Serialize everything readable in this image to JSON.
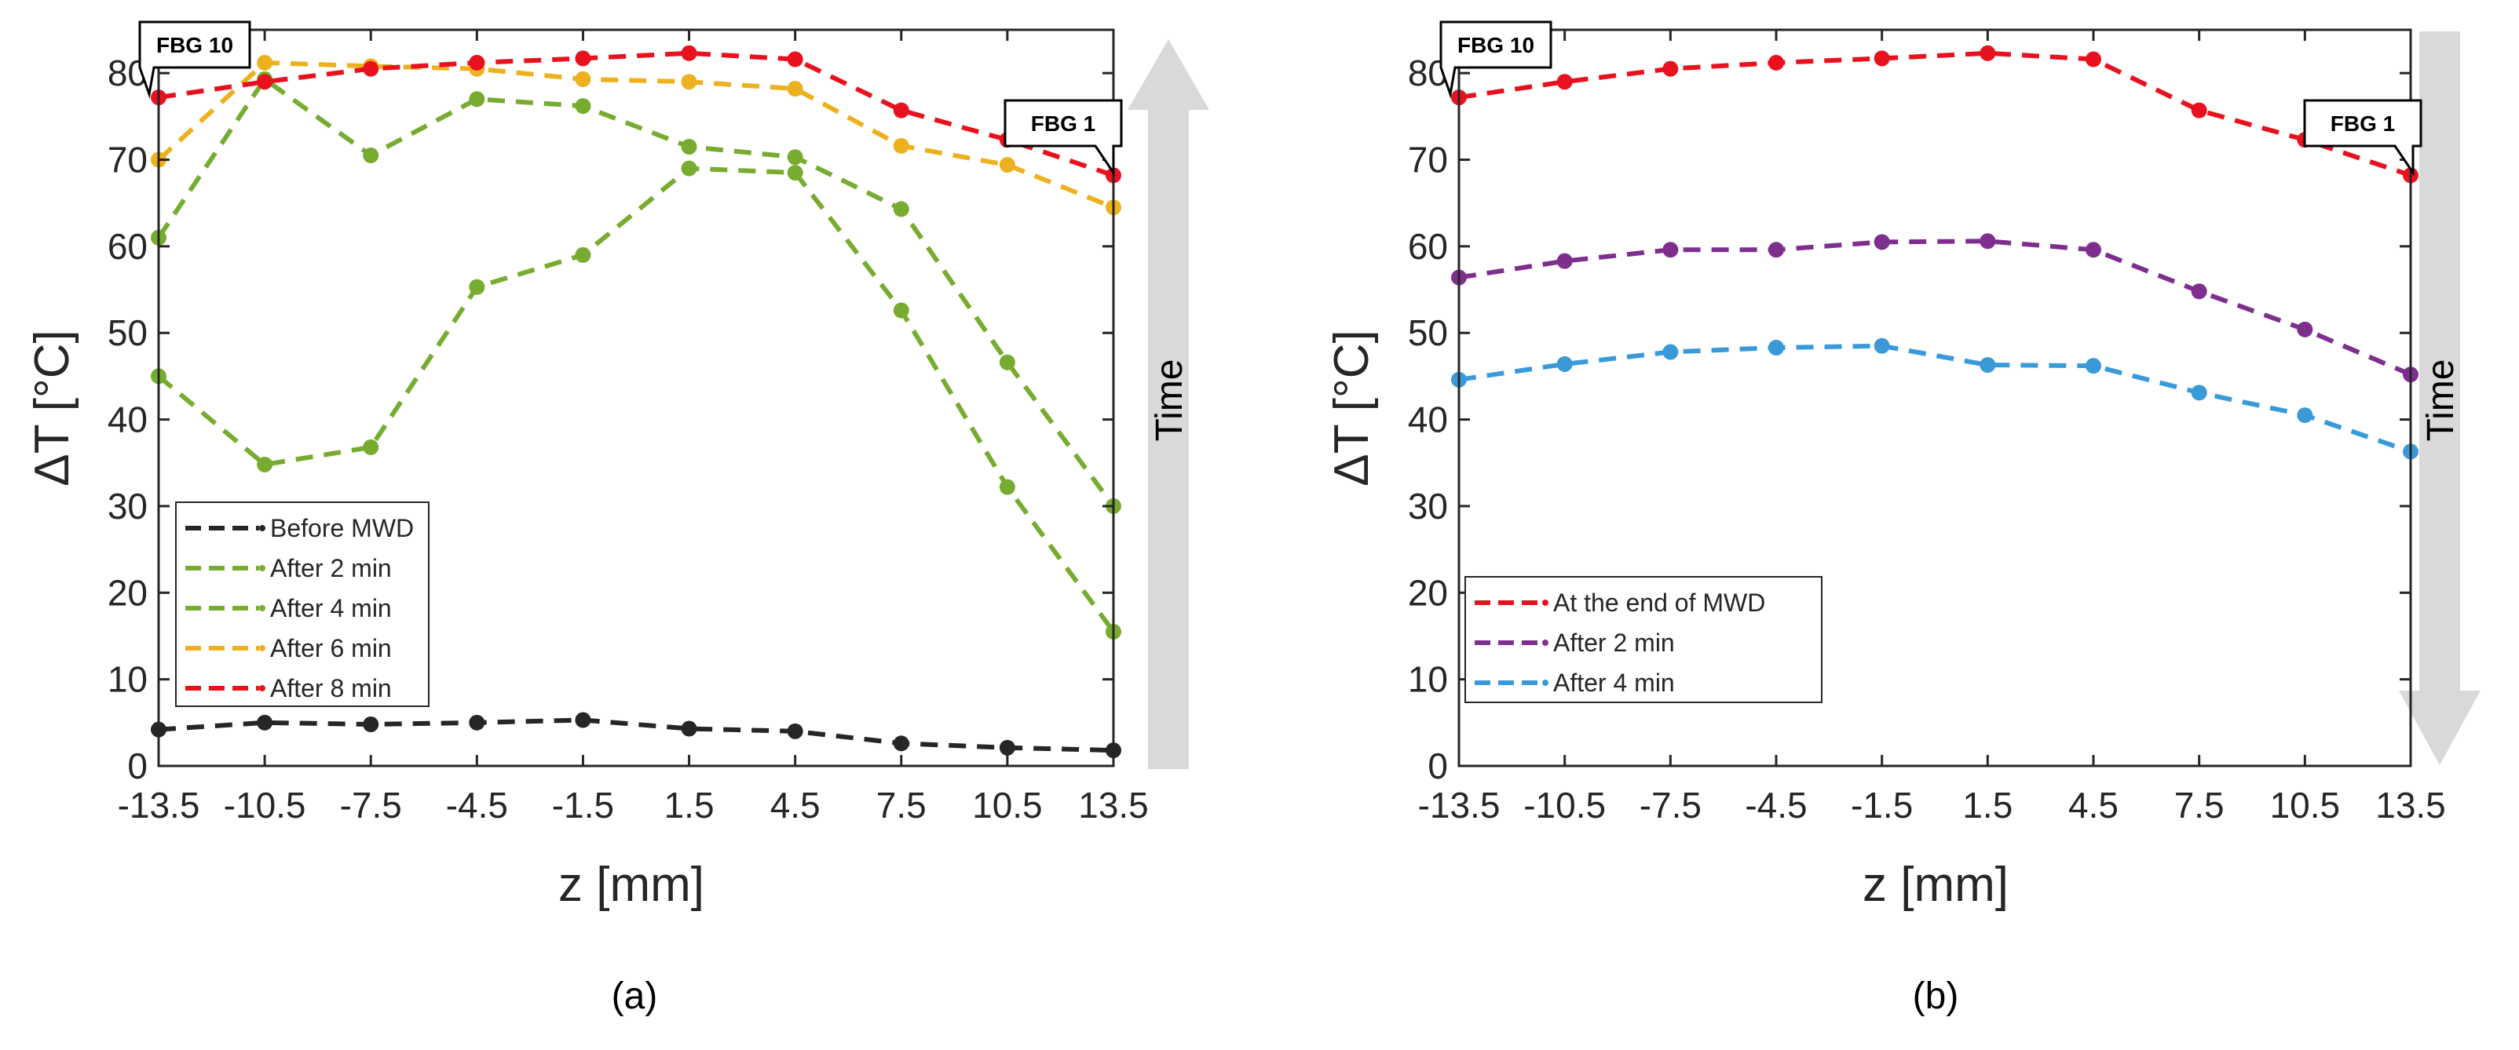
{
  "chart_data": [
    {
      "type": "line",
      "panel_label": "(a)",
      "xlabel": "z  [mm]",
      "ylabel": "ΔT [°C]",
      "categories": [
        "-13.5",
        "-10.5",
        "-7.5",
        "-4.5",
        "-1.5",
        "1.5",
        "4.5",
        "7.5",
        "10.5",
        "13.5"
      ],
      "x": [
        -13.5,
        -10.5,
        -7.5,
        -4.5,
        -1.5,
        1.5,
        4.5,
        7.5,
        10.5,
        13.5
      ],
      "xlim": [
        -13.5,
        13.5
      ],
      "ylim": [
        0,
        85
      ],
      "yticks": [
        0,
        10,
        20,
        30,
        40,
        50,
        60,
        70,
        80
      ],
      "legend_location": "bottom-left",
      "series": [
        {
          "name": "Before MWD",
          "color": "#262626",
          "values": [
            4.2,
            5.0,
            4.8,
            5.0,
            5.3,
            4.3,
            4.0,
            2.6,
            2.1,
            1.8
          ]
        },
        {
          "name": "After 2 min",
          "color": "#77ac30",
          "values": [
            45.0,
            34.8,
            36.8,
            55.3,
            59.0,
            69.0,
            68.5,
            52.6,
            32.2,
            15.5
          ]
        },
        {
          "name": "After 4 min",
          "color": "#77ac30",
          "values": [
            61.0,
            79.3,
            70.5,
            77.0,
            76.2,
            71.5,
            70.3,
            64.3,
            46.6,
            30.0
          ]
        },
        {
          "name": "After 6 min",
          "color": "#edb120",
          "values": [
            70.0,
            81.2,
            80.8,
            80.5,
            79.3,
            79.0,
            78.2,
            71.6,
            69.4,
            64.5
          ]
        },
        {
          "name": "After 8 min",
          "color": "#e8121f",
          "values": [
            77.2,
            79.0,
            80.5,
            81.2,
            81.7,
            82.3,
            81.6,
            75.7,
            72.3,
            68.2
          ]
        }
      ],
      "annotations": [
        {
          "text": "FBG 10",
          "at_x": -13.5,
          "placement": "top-left"
        },
        {
          "text": "FBG 1",
          "at_x": 13.5,
          "placement": "top-right"
        }
      ],
      "time_arrow": {
        "label": "Time",
        "direction": "up"
      }
    },
    {
      "type": "line",
      "panel_label": "(b)",
      "xlabel": "z  [mm]",
      "ylabel": "ΔT [°C]",
      "categories": [
        "-13.5",
        "-10.5",
        "-7.5",
        "-4.5",
        "-1.5",
        "1.5",
        "4.5",
        "7.5",
        "10.5",
        "13.5"
      ],
      "x": [
        -13.5,
        -10.5,
        -7.5,
        -4.5,
        -1.5,
        1.5,
        4.5,
        7.5,
        10.5,
        13.5
      ],
      "xlim": [
        -13.5,
        13.5
      ],
      "ylim": [
        0,
        85
      ],
      "yticks": [
        0,
        10,
        20,
        30,
        40,
        50,
        60,
        70,
        80
      ],
      "legend_location": "bottom-left",
      "series": [
        {
          "name": "At the end of MWD",
          "color": "#e8121f",
          "values": [
            77.2,
            79.0,
            80.5,
            81.2,
            81.7,
            82.3,
            81.6,
            75.7,
            72.3,
            68.2
          ]
        },
        {
          "name": "After 2 min",
          "color": "#7e2f8e",
          "values": [
            56.4,
            58.3,
            59.6,
            59.6,
            60.5,
            60.6,
            59.6,
            54.8,
            50.4,
            45.2
          ]
        },
        {
          "name": "After 4 min",
          "color": "#3a9ad9",
          "values": [
            44.6,
            46.4,
            47.8,
            48.3,
            48.5,
            46.3,
            46.2,
            43.1,
            40.5,
            36.3
          ]
        }
      ],
      "annotations": [
        {
          "text": "FBG 10",
          "at_x": -13.5,
          "placement": "top-left"
        },
        {
          "text": "FBG 1",
          "at_x": 13.5,
          "placement": "top-right"
        }
      ],
      "time_arrow": {
        "label": "Time",
        "direction": "down"
      }
    }
  ]
}
